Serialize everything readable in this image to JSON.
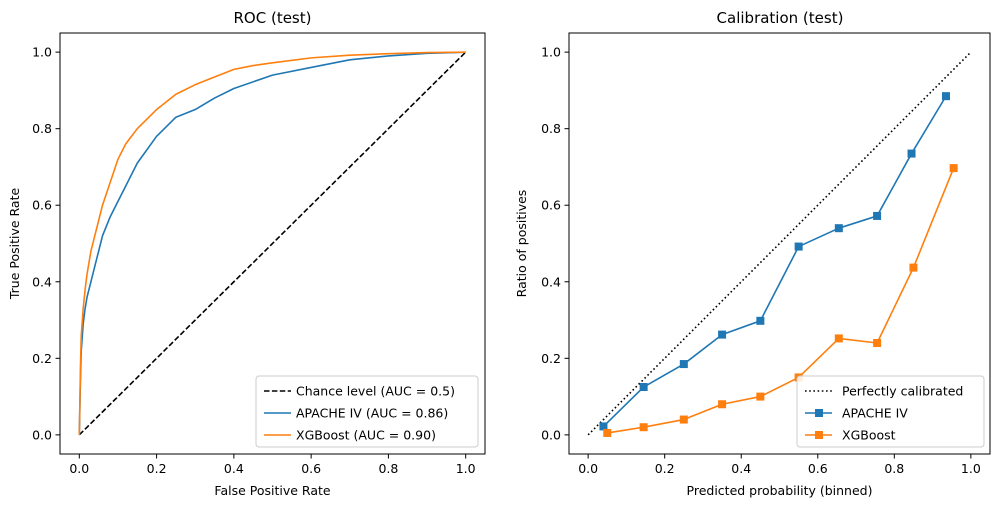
{
  "chart_data": [
    {
      "type": "line",
      "title": "ROC (test)",
      "xlabel": "False Positive Rate",
      "ylabel": "True Positive Rate",
      "xlim": [
        -0.05,
        1.05
      ],
      "ylim": [
        -0.05,
        1.05
      ],
      "xticks": [
        "0.0",
        "0.2",
        "0.4",
        "0.6",
        "0.8",
        "1.0"
      ],
      "yticks": [
        "0.0",
        "0.2",
        "0.4",
        "0.6",
        "0.8",
        "1.0"
      ],
      "legend_position": "lower-right",
      "series": [
        {
          "name": "Chance level (AUC = 0.5)",
          "color": "#000000",
          "dash": true,
          "x": [
            0,
            1
          ],
          "y": [
            0,
            1
          ]
        },
        {
          "name": "APACHE IV (AUC = 0.86)",
          "color": "#1f77b4",
          "x": [
            0,
            0.003,
            0.005,
            0.01,
            0.015,
            0.02,
            0.03,
            0.04,
            0.05,
            0.06,
            0.08,
            0.1,
            0.12,
            0.15,
            0.2,
            0.25,
            0.3,
            0.35,
            0.4,
            0.5,
            0.6,
            0.7,
            0.8,
            0.9,
            1.0
          ],
          "y": [
            0,
            0.15,
            0.22,
            0.29,
            0.33,
            0.36,
            0.4,
            0.44,
            0.48,
            0.52,
            0.57,
            0.61,
            0.65,
            0.71,
            0.78,
            0.83,
            0.85,
            0.88,
            0.905,
            0.94,
            0.96,
            0.98,
            0.99,
            0.997,
            1.0
          ]
        },
        {
          "name": "XGBoost (AUC = 0.90)",
          "color": "#ff7f0e",
          "x": [
            0,
            0.003,
            0.005,
            0.01,
            0.015,
            0.02,
            0.03,
            0.04,
            0.05,
            0.06,
            0.08,
            0.1,
            0.12,
            0.15,
            0.2,
            0.25,
            0.3,
            0.35,
            0.4,
            0.45,
            0.5,
            0.6,
            0.7,
            0.8,
            0.9,
            1.0
          ],
          "y": [
            0,
            0.18,
            0.26,
            0.33,
            0.38,
            0.42,
            0.48,
            0.52,
            0.56,
            0.6,
            0.66,
            0.72,
            0.76,
            0.8,
            0.85,
            0.89,
            0.915,
            0.935,
            0.955,
            0.965,
            0.972,
            0.985,
            0.992,
            0.996,
            0.999,
            1.0
          ]
        }
      ]
    },
    {
      "type": "line",
      "title": "Calibration (test)",
      "xlabel": "Predicted probability (binned)",
      "ylabel": "Ratio of positives",
      "xlim": [
        -0.05,
        1.05
      ],
      "ylim": [
        -0.05,
        1.05
      ],
      "xticks": [
        "0.0",
        "0.2",
        "0.4",
        "0.6",
        "0.8",
        "1.0"
      ],
      "yticks": [
        "0.0",
        "0.2",
        "0.4",
        "0.6",
        "0.8",
        "1.0"
      ],
      "legend_position": "lower-right",
      "series": [
        {
          "name": "Perfectly calibrated",
          "color": "#000000",
          "dotted": true,
          "x": [
            0,
            1
          ],
          "y": [
            0,
            1
          ]
        },
        {
          "name": "APACHE IV",
          "color": "#1f77b4",
          "marker": "square",
          "x": [
            0.04,
            0.145,
            0.25,
            0.35,
            0.45,
            0.55,
            0.655,
            0.755,
            0.845,
            0.935
          ],
          "y": [
            0.022,
            0.125,
            0.185,
            0.262,
            0.298,
            0.492,
            0.54,
            0.572,
            0.735,
            0.885
          ]
        },
        {
          "name": "XGBoost",
          "color": "#ff7f0e",
          "marker": "square",
          "x": [
            0.05,
            0.145,
            0.25,
            0.35,
            0.45,
            0.55,
            0.655,
            0.755,
            0.85,
            0.955
          ],
          "y": [
            0.005,
            0.02,
            0.04,
            0.08,
            0.1,
            0.15,
            0.252,
            0.24,
            0.437,
            0.697
          ]
        }
      ]
    }
  ]
}
